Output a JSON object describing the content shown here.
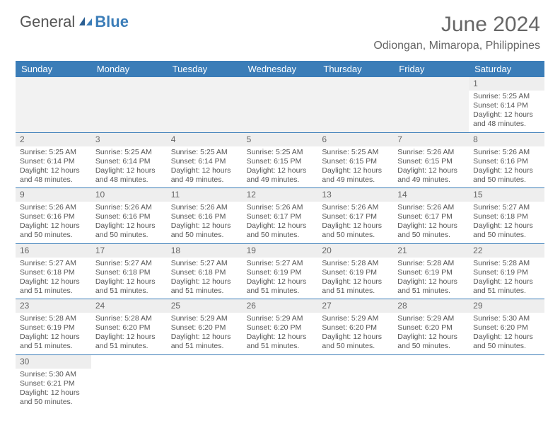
{
  "logo": {
    "general": "General",
    "blue": "Blue"
  },
  "title": "June 2024",
  "location": "Odiongan, Mimaropa, Philippines",
  "day_headers": [
    "Sunday",
    "Monday",
    "Tuesday",
    "Wednesday",
    "Thursday",
    "Friday",
    "Saturday"
  ],
  "colors": {
    "header_bg": "#3b7db8",
    "header_text": "#ffffff",
    "cell_border": "#3b7db8",
    "daynum_bg": "#eeeeee",
    "text": "#555555",
    "title": "#666666"
  },
  "weeks": [
    [
      null,
      null,
      null,
      null,
      null,
      null,
      {
        "n": "1",
        "sunrise": "Sunrise: 5:25 AM",
        "sunset": "Sunset: 6:14 PM",
        "daylight1": "Daylight: 12 hours",
        "daylight2": "and 48 minutes."
      }
    ],
    [
      {
        "n": "2",
        "sunrise": "Sunrise: 5:25 AM",
        "sunset": "Sunset: 6:14 PM",
        "daylight1": "Daylight: 12 hours",
        "daylight2": "and 48 minutes."
      },
      {
        "n": "3",
        "sunrise": "Sunrise: 5:25 AM",
        "sunset": "Sunset: 6:14 PM",
        "daylight1": "Daylight: 12 hours",
        "daylight2": "and 48 minutes."
      },
      {
        "n": "4",
        "sunrise": "Sunrise: 5:25 AM",
        "sunset": "Sunset: 6:14 PM",
        "daylight1": "Daylight: 12 hours",
        "daylight2": "and 49 minutes."
      },
      {
        "n": "5",
        "sunrise": "Sunrise: 5:25 AM",
        "sunset": "Sunset: 6:15 PM",
        "daylight1": "Daylight: 12 hours",
        "daylight2": "and 49 minutes."
      },
      {
        "n": "6",
        "sunrise": "Sunrise: 5:25 AM",
        "sunset": "Sunset: 6:15 PM",
        "daylight1": "Daylight: 12 hours",
        "daylight2": "and 49 minutes."
      },
      {
        "n": "7",
        "sunrise": "Sunrise: 5:26 AM",
        "sunset": "Sunset: 6:15 PM",
        "daylight1": "Daylight: 12 hours",
        "daylight2": "and 49 minutes."
      },
      {
        "n": "8",
        "sunrise": "Sunrise: 5:26 AM",
        "sunset": "Sunset: 6:16 PM",
        "daylight1": "Daylight: 12 hours",
        "daylight2": "and 50 minutes."
      }
    ],
    [
      {
        "n": "9",
        "sunrise": "Sunrise: 5:26 AM",
        "sunset": "Sunset: 6:16 PM",
        "daylight1": "Daylight: 12 hours",
        "daylight2": "and 50 minutes."
      },
      {
        "n": "10",
        "sunrise": "Sunrise: 5:26 AM",
        "sunset": "Sunset: 6:16 PM",
        "daylight1": "Daylight: 12 hours",
        "daylight2": "and 50 minutes."
      },
      {
        "n": "11",
        "sunrise": "Sunrise: 5:26 AM",
        "sunset": "Sunset: 6:16 PM",
        "daylight1": "Daylight: 12 hours",
        "daylight2": "and 50 minutes."
      },
      {
        "n": "12",
        "sunrise": "Sunrise: 5:26 AM",
        "sunset": "Sunset: 6:17 PM",
        "daylight1": "Daylight: 12 hours",
        "daylight2": "and 50 minutes."
      },
      {
        "n": "13",
        "sunrise": "Sunrise: 5:26 AM",
        "sunset": "Sunset: 6:17 PM",
        "daylight1": "Daylight: 12 hours",
        "daylight2": "and 50 minutes."
      },
      {
        "n": "14",
        "sunrise": "Sunrise: 5:26 AM",
        "sunset": "Sunset: 6:17 PM",
        "daylight1": "Daylight: 12 hours",
        "daylight2": "and 50 minutes."
      },
      {
        "n": "15",
        "sunrise": "Sunrise: 5:27 AM",
        "sunset": "Sunset: 6:18 PM",
        "daylight1": "Daylight: 12 hours",
        "daylight2": "and 50 minutes."
      }
    ],
    [
      {
        "n": "16",
        "sunrise": "Sunrise: 5:27 AM",
        "sunset": "Sunset: 6:18 PM",
        "daylight1": "Daylight: 12 hours",
        "daylight2": "and 51 minutes."
      },
      {
        "n": "17",
        "sunrise": "Sunrise: 5:27 AM",
        "sunset": "Sunset: 6:18 PM",
        "daylight1": "Daylight: 12 hours",
        "daylight2": "and 51 minutes."
      },
      {
        "n": "18",
        "sunrise": "Sunrise: 5:27 AM",
        "sunset": "Sunset: 6:18 PM",
        "daylight1": "Daylight: 12 hours",
        "daylight2": "and 51 minutes."
      },
      {
        "n": "19",
        "sunrise": "Sunrise: 5:27 AM",
        "sunset": "Sunset: 6:19 PM",
        "daylight1": "Daylight: 12 hours",
        "daylight2": "and 51 minutes."
      },
      {
        "n": "20",
        "sunrise": "Sunrise: 5:28 AM",
        "sunset": "Sunset: 6:19 PM",
        "daylight1": "Daylight: 12 hours",
        "daylight2": "and 51 minutes."
      },
      {
        "n": "21",
        "sunrise": "Sunrise: 5:28 AM",
        "sunset": "Sunset: 6:19 PM",
        "daylight1": "Daylight: 12 hours",
        "daylight2": "and 51 minutes."
      },
      {
        "n": "22",
        "sunrise": "Sunrise: 5:28 AM",
        "sunset": "Sunset: 6:19 PM",
        "daylight1": "Daylight: 12 hours",
        "daylight2": "and 51 minutes."
      }
    ],
    [
      {
        "n": "23",
        "sunrise": "Sunrise: 5:28 AM",
        "sunset": "Sunset: 6:19 PM",
        "daylight1": "Daylight: 12 hours",
        "daylight2": "and 51 minutes."
      },
      {
        "n": "24",
        "sunrise": "Sunrise: 5:28 AM",
        "sunset": "Sunset: 6:20 PM",
        "daylight1": "Daylight: 12 hours",
        "daylight2": "and 51 minutes."
      },
      {
        "n": "25",
        "sunrise": "Sunrise: 5:29 AM",
        "sunset": "Sunset: 6:20 PM",
        "daylight1": "Daylight: 12 hours",
        "daylight2": "and 51 minutes."
      },
      {
        "n": "26",
        "sunrise": "Sunrise: 5:29 AM",
        "sunset": "Sunset: 6:20 PM",
        "daylight1": "Daylight: 12 hours",
        "daylight2": "and 51 minutes."
      },
      {
        "n": "27",
        "sunrise": "Sunrise: 5:29 AM",
        "sunset": "Sunset: 6:20 PM",
        "daylight1": "Daylight: 12 hours",
        "daylight2": "and 50 minutes."
      },
      {
        "n": "28",
        "sunrise": "Sunrise: 5:29 AM",
        "sunset": "Sunset: 6:20 PM",
        "daylight1": "Daylight: 12 hours",
        "daylight2": "and 50 minutes."
      },
      {
        "n": "29",
        "sunrise": "Sunrise: 5:30 AM",
        "sunset": "Sunset: 6:20 PM",
        "daylight1": "Daylight: 12 hours",
        "daylight2": "and 50 minutes."
      }
    ],
    [
      {
        "n": "30",
        "sunrise": "Sunrise: 5:30 AM",
        "sunset": "Sunset: 6:21 PM",
        "daylight1": "Daylight: 12 hours",
        "daylight2": "and 50 minutes."
      },
      null,
      null,
      null,
      null,
      null,
      null
    ]
  ]
}
